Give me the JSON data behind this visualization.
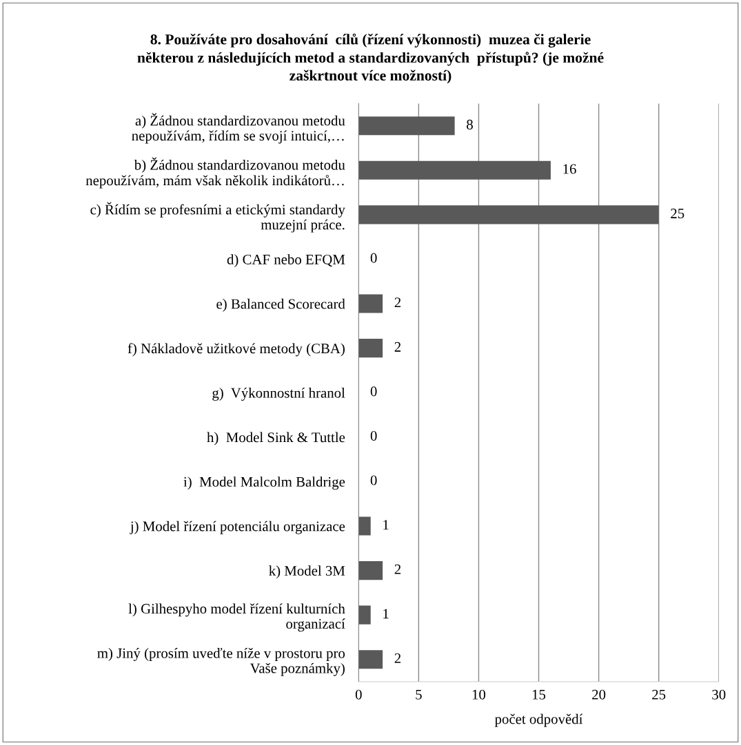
{
  "chart_data": {
    "type": "bar",
    "orientation": "horizontal",
    "title": "8. Používáte pro dosahování  cílů (řízení výkonnosti)  muzea či galerie\nněkterou z následujících metod a standardizovaných  přístupů? (je možné\nzaškrtnout více možností)",
    "xlabel": "počet odpovědí",
    "categories": [
      "a) Žádnou standardizovanou metodu\nnepoužívám, řídím se svojí intuicí,…",
      "b) Žádnou standardizovanou metodu\nnepoužívám, mám však několik indikátorů…",
      "c) Řídím se profesními a etickými standardy\nmuzejní práce.",
      "d) CAF nebo EFQM",
      "e) Balanced Scorecard",
      "f) Nákladově užitkové metody (CBA)",
      "g)  Výkonnostní hranol",
      "h)  Model Sink & Tuttle",
      "i)  Model Malcolm Baldrige",
      "j) Model řízení potenciálu organizace",
      "k) Model 3M",
      "l) Gilhespyho model řízení kulturních\norganizací",
      "m) Jiný (prosím uveďte níže v prostoru pro\nVaše poznámky)"
    ],
    "values": [
      8,
      16,
      25,
      0,
      2,
      2,
      0,
      0,
      0,
      1,
      2,
      1,
      2
    ],
    "color": "#595959",
    "xlim": [
      0,
      30
    ],
    "xticks": [
      0,
      5,
      10,
      15,
      20,
      25,
      30
    ],
    "grid": "x",
    "data_labels": true
  }
}
